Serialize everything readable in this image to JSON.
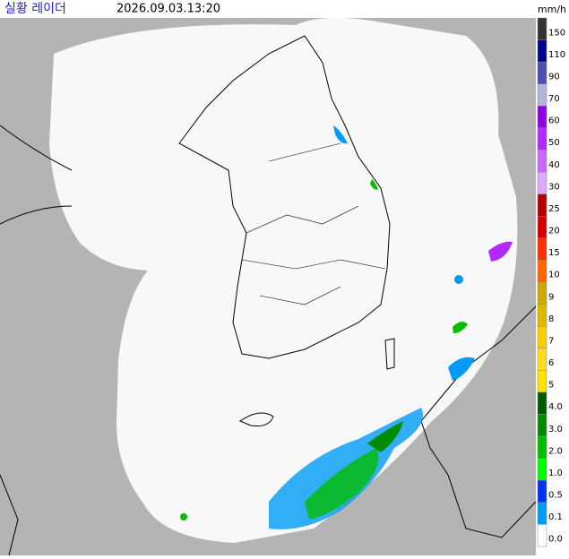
{
  "header": {
    "title": "실황 레이더",
    "timestamp": "2026.09.03.13:20",
    "unit": "mm/h"
  },
  "legend": [
    {
      "label": "150",
      "color": "#333333"
    },
    {
      "label": "110",
      "color": "#000390"
    },
    {
      "label": "90",
      "color": "#4c4eb1"
    },
    {
      "label": "70",
      "color": "#b3b4de"
    },
    {
      "label": "60",
      "color": "#9300e4"
    },
    {
      "label": "50",
      "color": "#b329ff"
    },
    {
      "label": "40",
      "color": "#c969ff"
    },
    {
      "label": "30",
      "color": "#e0a9ff"
    },
    {
      "label": "25",
      "color": "#b40000"
    },
    {
      "label": "20",
      "color": "#d20000"
    },
    {
      "label": "15",
      "color": "#ff3200"
    },
    {
      "label": "10",
      "color": "#ff6600"
    },
    {
      "label": "9",
      "color": "#ccaa00"
    },
    {
      "label": "8",
      "color": "#e0b900"
    },
    {
      "label": "7",
      "color": "#f9cd00"
    },
    {
      "label": "6",
      "color": "#ffdc1f"
    },
    {
      "label": "5",
      "color": "#ffe100"
    },
    {
      "label": "4.0",
      "color": "#005a00"
    },
    {
      "label": "3.0",
      "color": "#008c00"
    },
    {
      "label": "2.0",
      "color": "#00be00"
    },
    {
      "label": "1.0",
      "color": "#00ff00"
    },
    {
      "label": "0.5",
      "color": "#0033f5"
    },
    {
      "label": "0.1",
      "color": "#009bf5"
    },
    {
      "label": "0.0",
      "color": "#ffffff"
    }
  ]
}
